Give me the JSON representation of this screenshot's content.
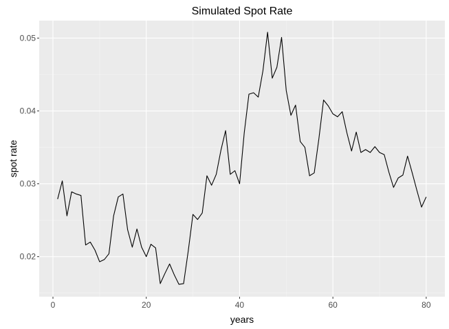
{
  "chart_data": {
    "type": "line",
    "title": "Simulated Spot Rate",
    "xlabel": "years",
    "ylabel": "spot rate",
    "xlim": [
      -2.95,
      84.0
    ],
    "ylim": [
      0.0145,
      0.0524
    ],
    "x_ticks": [
      0,
      20,
      40,
      60,
      80
    ],
    "x_tick_labels": [
      "0",
      "20",
      "40",
      "60",
      "80"
    ],
    "y_ticks": [
      0.02,
      0.03,
      0.04,
      0.05
    ],
    "y_tick_labels": [
      "0.02",
      "0.03",
      "0.04",
      "0.05"
    ],
    "grid": true,
    "colors": {
      "panel": "#ebebeb",
      "grid_major": "#ffffff",
      "grid_minor": "#f5f5f5",
      "line": "#000000"
    },
    "series": [
      {
        "x": [
          1,
          2,
          3,
          4,
          5,
          6,
          7,
          8,
          9,
          10,
          11,
          12,
          13,
          14,
          15,
          16,
          17,
          18,
          19,
          20,
          21,
          22,
          23,
          24,
          25,
          26,
          27,
          28,
          29,
          30,
          31,
          32,
          33,
          34,
          35,
          36,
          37,
          38,
          39,
          40,
          41,
          42,
          43,
          44,
          45,
          46,
          47,
          48,
          49,
          50,
          51,
          52,
          53,
          54,
          55,
          56,
          57,
          58,
          59,
          60,
          61,
          62,
          63,
          64,
          65,
          66,
          67,
          68,
          69,
          70,
          71,
          72,
          73,
          74,
          75,
          76,
          77,
          78,
          79,
          80
        ],
        "y": [
          0.0279,
          0.0304,
          0.0256,
          0.0289,
          0.0286,
          0.0284,
          0.0216,
          0.022,
          0.0209,
          0.0193,
          0.0196,
          0.0204,
          0.0256,
          0.0282,
          0.0286,
          0.0237,
          0.0213,
          0.0238,
          0.0213,
          0.02,
          0.0217,
          0.0212,
          0.0163,
          0.0177,
          0.019,
          0.0175,
          0.0162,
          0.0163,
          0.0208,
          0.0258,
          0.0251,
          0.026,
          0.0311,
          0.0298,
          0.0313,
          0.0346,
          0.0373,
          0.0313,
          0.0318,
          0.03,
          0.037,
          0.0423,
          0.0425,
          0.0419,
          0.0455,
          0.0508,
          0.0445,
          0.046,
          0.0501,
          0.0428,
          0.0394,
          0.0408,
          0.0358,
          0.035,
          0.0311,
          0.0315,
          0.0362,
          0.0415,
          0.0407,
          0.0396,
          0.0392,
          0.0399,
          0.037,
          0.0345,
          0.0371,
          0.0343,
          0.0347,
          0.0343,
          0.0351,
          0.0343,
          0.034,
          0.0316,
          0.0295,
          0.0308,
          0.0312,
          0.0338,
          0.0315,
          0.0291,
          0.0268,
          0.0282
        ]
      }
    ]
  }
}
